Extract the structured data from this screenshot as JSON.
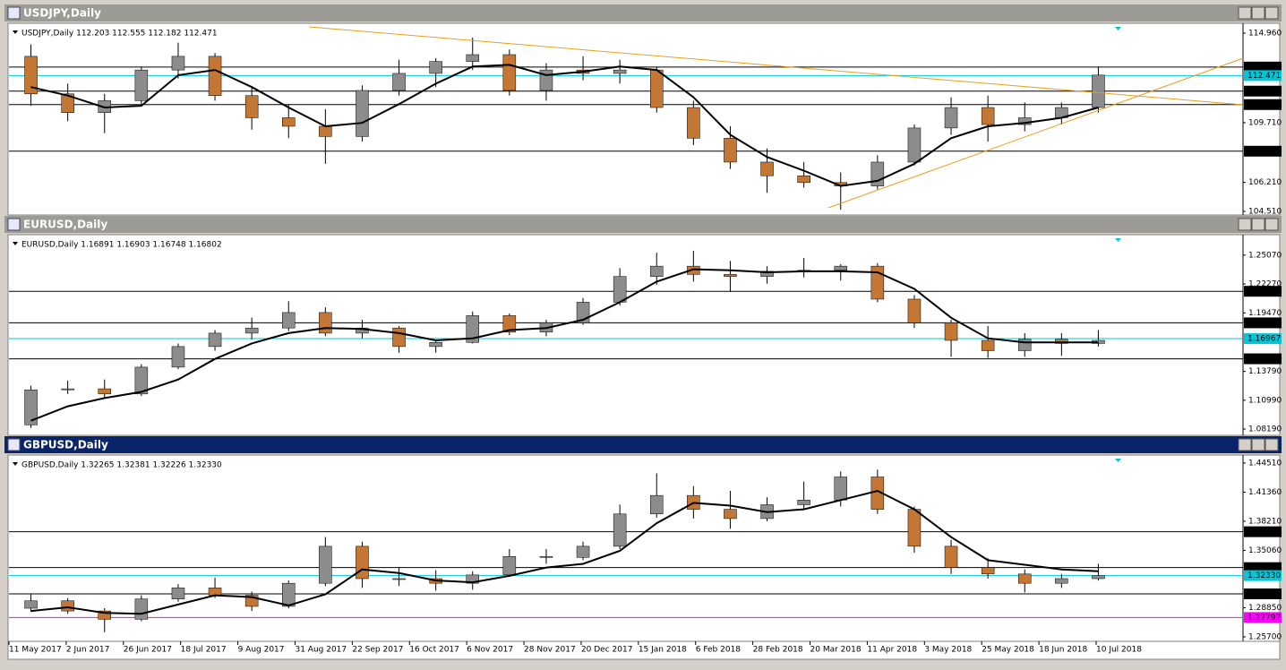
{
  "time_axis": [
    "11 May 2017",
    "2 Jun 2017",
    "26 Jun 2017",
    "18 Jul 2017",
    "9 Aug 2017",
    "31 Aug 2017",
    "22 Sep 2017",
    "16 Oct 2017",
    "6 Nov 2017",
    "28 Nov 2017",
    "20 Dec 2017",
    "15 Jan 2018",
    "6 Feb 2018",
    "28 Feb 2018",
    "20 Mar 2018",
    "11 Apr 2018",
    "3 May 2018",
    "25 May 2018",
    "18 Jun 2018",
    "10 Jul 2018"
  ],
  "chart_data": [
    {
      "type": "candlestick",
      "title": "USDJPY,Daily",
      "subtitle": "USDJPY,Daily  112.203 112.555 112.182 112.471",
      "active": false,
      "up_color": "#8c8c8c",
      "down_color": "#c47634",
      "ma_color": "#000000",
      "open": [
        113.6,
        111.4,
        110.3,
        111.0,
        112.8,
        113.6,
        111.3,
        110.0,
        109.5,
        108.9,
        111.6,
        112.6,
        113.3,
        113.7,
        111.6,
        112.8,
        112.6,
        112.8,
        110.6,
        108.8,
        107.4,
        106.6,
        106.2,
        106.0,
        107.4,
        109.4,
        110.6,
        109.6,
        110.0,
        110.6
      ],
      "high": [
        114.3,
        112.0,
        111.4,
        113.0,
        114.4,
        113.8,
        111.8,
        110.8,
        110.5,
        111.9,
        113.4,
        113.5,
        114.7,
        114.0,
        113.2,
        113.6,
        113.4,
        113.0,
        111.0,
        109.5,
        108.2,
        107.4,
        106.8,
        107.8,
        109.6,
        111.2,
        111.3,
        110.9,
        110.9,
        113.0
      ],
      "low": [
        110.7,
        109.8,
        109.1,
        110.8,
        112.3,
        111.0,
        109.3,
        108.8,
        107.3,
        108.6,
        111.3,
        111.8,
        112.8,
        111.3,
        111.0,
        112.2,
        112.0,
        110.3,
        108.4,
        107.0,
        105.6,
        105.9,
        104.6,
        105.8,
        107.2,
        109.0,
        108.6,
        109.2,
        109.6,
        110.3
      ],
      "close": [
        111.4,
        110.3,
        111.0,
        112.8,
        113.6,
        111.3,
        110.0,
        109.5,
        108.9,
        111.6,
        112.6,
        113.3,
        113.7,
        111.6,
        112.8,
        112.6,
        112.8,
        110.6,
        108.8,
        107.4,
        106.6,
        106.2,
        106.0,
        107.4,
        109.4,
        110.6,
        109.6,
        110.0,
        110.6,
        112.5
      ],
      "ma": [
        111.8,
        111.3,
        110.6,
        110.7,
        112.5,
        112.8,
        111.8,
        110.6,
        109.5,
        109.7,
        110.8,
        112.0,
        113.0,
        113.1,
        112.5,
        112.7,
        113.0,
        112.8,
        111.2,
        109.0,
        107.7,
        106.9,
        106.0,
        106.3,
        107.3,
        108.8,
        109.5,
        109.7,
        110.0,
        110.6
      ],
      "ylim": [
        104.405,
        115.433
      ],
      "yticks": [
        {
          "value": 114.96,
          "label": "114.960"
        },
        {
          "value": 109.71,
          "label": "109.710"
        },
        {
          "value": 106.21,
          "label": "106.210"
        },
        {
          "value": 104.51,
          "label": "104.510"
        }
      ],
      "levels": [
        112.973,
        112.471,
        111.561,
        110.772,
        108.039
      ],
      "level_colors": [
        "#000000",
        "#00c8d8",
        "#000000",
        "#000000",
        "#000000"
      ]
    },
    {
      "type": "candlestick",
      "title": "EURUSD,Daily",
      "subtitle": "EURUSD,Daily  1.16891 1.16903 1.16748 1.16802",
      "active": false,
      "up_color": "#8c8c8c",
      "down_color": "#c47634",
      "ma_color": "#000000",
      "open": [
        1.086,
        1.12,
        1.121,
        1.116,
        1.142,
        1.162,
        1.175,
        1.18,
        1.195,
        1.175,
        1.18,
        1.162,
        1.166,
        1.192,
        1.176,
        1.185,
        1.205,
        1.23,
        1.24,
        1.232,
        1.23,
        1.235,
        1.236,
        1.24,
        1.208,
        1.185,
        1.168,
        1.158,
        1.169,
        1.165
      ],
      "high": [
        1.124,
        1.129,
        1.13,
        1.145,
        1.165,
        1.178,
        1.19,
        1.206,
        1.2,
        1.188,
        1.182,
        1.168,
        1.196,
        1.194,
        1.188,
        1.209,
        1.238,
        1.253,
        1.255,
        1.245,
        1.24,
        1.248,
        1.242,
        1.243,
        1.212,
        1.188,
        1.182,
        1.175,
        1.175,
        1.178
      ],
      "low": [
        1.083,
        1.116,
        1.112,
        1.114,
        1.14,
        1.158,
        1.169,
        1.177,
        1.172,
        1.17,
        1.156,
        1.156,
        1.165,
        1.173,
        1.172,
        1.183,
        1.202,
        1.222,
        1.225,
        1.215,
        1.223,
        1.229,
        1.226,
        1.205,
        1.18,
        1.152,
        1.151,
        1.152,
        1.153,
        1.162
      ],
      "close": [
        1.12,
        1.121,
        1.116,
        1.142,
        1.162,
        1.175,
        1.18,
        1.195,
        1.175,
        1.18,
        1.162,
        1.166,
        1.192,
        1.176,
        1.185,
        1.205,
        1.23,
        1.24,
        1.232,
        1.23,
        1.235,
        1.236,
        1.24,
        1.208,
        1.185,
        1.168,
        1.158,
        1.169,
        1.165,
        1.168
      ],
      "ma": [
        1.09,
        1.104,
        1.112,
        1.118,
        1.13,
        1.15,
        1.165,
        1.175,
        1.18,
        1.179,
        1.175,
        1.168,
        1.17,
        1.178,
        1.18,
        1.188,
        1.205,
        1.225,
        1.237,
        1.236,
        1.234,
        1.235,
        1.235,
        1.234,
        1.218,
        1.19,
        1.17,
        1.166,
        1.166,
        1.166
      ],
      "ylim": [
        1.0776,
        1.2688
      ],
      "yticks": [
        {
          "value": 1.2507,
          "label": "1.25070"
        },
        {
          "value": 1.2227,
          "label": "1.22270"
        },
        {
          "value": 1.1947,
          "label": "1.19470"
        },
        {
          "value": 1.1379,
          "label": "1.13790"
        },
        {
          "value": 1.1099,
          "label": "1.10990"
        },
        {
          "value": 1.0819,
          "label": "1.08190"
        }
      ],
      "levels": [
        1.21561,
        1.18499,
        1.16967,
        1.15011
      ],
      "level_colors": [
        "#000000",
        "#000000",
        "#00c8d8",
        "#000000"
      ]
    },
    {
      "type": "candlestick",
      "title": "GBPUSD,Daily",
      "subtitle": "GBPUSD,Daily  1.32265 1.32381 1.32226 1.32330",
      "active": true,
      "up_color": "#8c8c8c",
      "down_color": "#c47634",
      "ma_color": "#000000",
      "open": [
        1.288,
        1.296,
        1.285,
        1.276,
        1.298,
        1.31,
        1.302,
        1.29,
        1.315,
        1.355,
        1.32,
        1.32,
        1.315,
        1.324,
        1.344,
        1.343,
        1.355,
        1.39,
        1.41,
        1.395,
        1.385,
        1.4,
        1.405,
        1.43,
        1.395,
        1.355,
        1.332,
        1.325,
        1.315,
        1.32
      ],
      "high": [
        1.303,
        1.299,
        1.288,
        1.302,
        1.314,
        1.321,
        1.306,
        1.318,
        1.365,
        1.36,
        1.332,
        1.329,
        1.328,
        1.352,
        1.352,
        1.36,
        1.4,
        1.434,
        1.42,
        1.415,
        1.408,
        1.425,
        1.436,
        1.438,
        1.398,
        1.362,
        1.342,
        1.33,
        1.325,
        1.336
      ],
      "low": [
        1.284,
        1.282,
        1.262,
        1.274,
        1.295,
        1.299,
        1.285,
        1.288,
        1.312,
        1.31,
        1.312,
        1.307,
        1.308,
        1.322,
        1.336,
        1.34,
        1.352,
        1.386,
        1.385,
        1.374,
        1.382,
        1.395,
        1.398,
        1.39,
        1.348,
        1.325,
        1.32,
        1.305,
        1.31,
        1.318
      ],
      "close": [
        1.296,
        1.285,
        1.276,
        1.298,
        1.31,
        1.302,
        1.29,
        1.315,
        1.355,
        1.32,
        1.32,
        1.315,
        1.324,
        1.344,
        1.343,
        1.355,
        1.39,
        1.41,
        1.395,
        1.385,
        1.4,
        1.405,
        1.43,
        1.395,
        1.355,
        1.332,
        1.325,
        1.315,
        1.32,
        1.3233
      ],
      "ma": [
        1.285,
        1.289,
        1.283,
        1.282,
        1.292,
        1.302,
        1.3,
        1.291,
        1.303,
        1.33,
        1.326,
        1.318,
        1.316,
        1.323,
        1.332,
        1.336,
        1.35,
        1.38,
        1.402,
        1.399,
        1.392,
        1.395,
        1.405,
        1.415,
        1.395,
        1.365,
        1.34,
        1.335,
        1.33,
        1.328
      ],
      "ylim": [
        1.2541,
        1.4518
      ],
      "yticks": [
        {
          "value": 1.4451,
          "label": "1.44510"
        },
        {
          "value": 1.4136,
          "label": "1.41360"
        },
        {
          "value": 1.3821,
          "label": "1.38210"
        },
        {
          "value": 1.3506,
          "label": "1.35060"
        },
        {
          "value": 1.2885,
          "label": "1.28850"
        },
        {
          "value": 1.257,
          "label": "1.25700"
        }
      ],
      "levels": [
        1.37076,
        1.33194,
        {
          "value": 1.3233,
          "label": "1.32330"
        },
        1.30353,
        1.27797
      ],
      "level_colors": [
        "#000000",
        "#000000",
        "#00c8d8",
        "#000000",
        "#ff00ff"
      ]
    }
  ]
}
